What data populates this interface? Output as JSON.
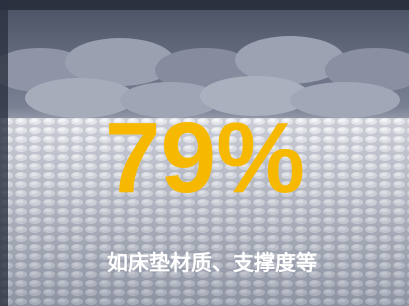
{
  "headline": "79%",
  "caption": "如床垫材质、支撑度等"
}
